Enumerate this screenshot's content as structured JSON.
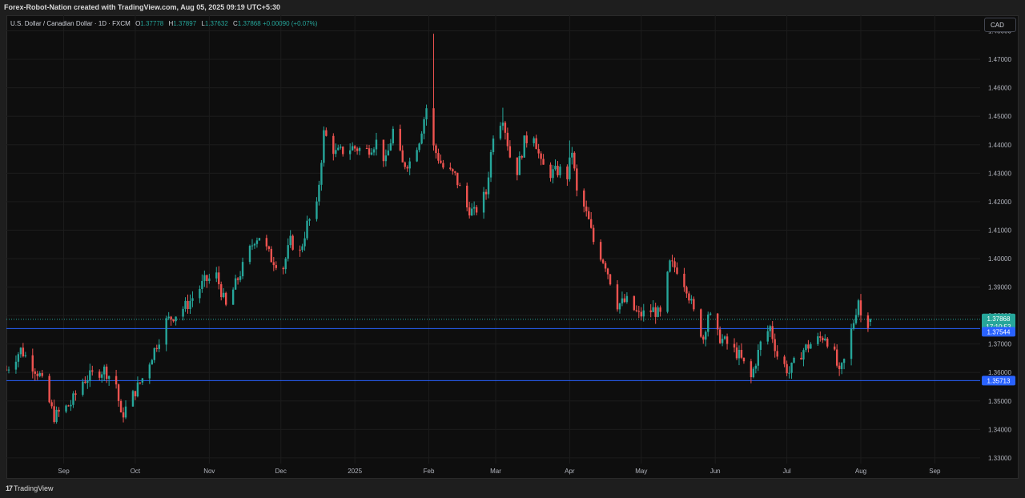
{
  "header": {
    "credit": "Forex-Robot-Nation created with TradingView.com, Aug 05, 2025 09:19 UTC+5:30"
  },
  "legend": {
    "symbol": "U.S. Dollar / Canadian Dollar · 1D · FXCM",
    "open_label": "O",
    "open": "1.37778",
    "high_label": "H",
    "high": "1.37897",
    "low_label": "L",
    "low": "1.37632",
    "close_label": "C",
    "close": "1.37868",
    "change": "+0.00090 (+0.07%)"
  },
  "currency_badge": "CAD",
  "footer": {
    "brand": "TradingView",
    "brand_mark": "17"
  },
  "colors": {
    "background": "#0e0e0e",
    "grid": "#1c1c1c",
    "up": "#26a69a",
    "down": "#ef5350",
    "level_line": "#2962ff",
    "axis_text": "#b2b5be"
  },
  "chart_data": {
    "type": "candlestick",
    "title": "U.S. Dollar / Canadian Dollar · 1D · FXCM",
    "x_range": [
      "2024-08-08",
      "2025-09-20"
    ],
    "ylim": [
      1.328,
      1.4855
    ],
    "grid": true,
    "y_ticks": [
      "1.48000",
      "1.47000",
      "1.46000",
      "1.45000",
      "1.44000",
      "1.43000",
      "1.42000",
      "1.41000",
      "1.40000",
      "1.39000",
      "1.38000",
      "1.37000",
      "1.36000",
      "1.35000",
      "1.34000",
      "1.33000"
    ],
    "x_ticks": [
      {
        "date": "2024-09-01",
        "label": "Sep"
      },
      {
        "date": "2024-10-01",
        "label": "Oct"
      },
      {
        "date": "2024-11-01",
        "label": "Nov"
      },
      {
        "date": "2024-12-01",
        "label": "Dec"
      },
      {
        "date": "2025-01-01",
        "label": "2025"
      },
      {
        "date": "2025-02-01",
        "label": "Feb"
      },
      {
        "date": "2025-03-01",
        "label": "Mar"
      },
      {
        "date": "2025-04-01",
        "label": "Apr"
      },
      {
        "date": "2025-05-01",
        "label": "May"
      },
      {
        "date": "2025-06-01",
        "label": "Jun"
      },
      {
        "date": "2025-07-01",
        "label": "Jul"
      },
      {
        "date": "2025-08-01",
        "label": "Aug"
      },
      {
        "date": "2025-09-01",
        "label": "Sep"
      }
    ],
    "price_labels": [
      {
        "value": 1.37868,
        "label": "1.37868",
        "countdown": "17:10:53",
        "kind": "last",
        "color": "#26a69a"
      },
      {
        "value": 1.37544,
        "label": "1.37544",
        "kind": "level",
        "color": "#2962ff"
      },
      {
        "value": 1.35713,
        "label": "1.35713",
        "kind": "level",
        "color": "#2962ff"
      }
    ],
    "horizontal_lines": [
      1.37544,
      1.35713
    ],
    "last_price": 1.37868,
    "anchors": [
      {
        "date": "2024-08-08",
        "close": 1.361
      },
      {
        "date": "2024-08-14",
        "close": 1.368
      },
      {
        "date": "2024-08-22",
        "close": 1.359
      },
      {
        "date": "2024-08-28",
        "close": 1.3445
      },
      {
        "date": "2024-09-04",
        "close": 1.349
      },
      {
        "date": "2024-09-09",
        "close": 1.357
      },
      {
        "date": "2024-09-13",
        "close": 1.3592
      },
      {
        "date": "2024-09-18",
        "close": 1.361
      },
      {
        "date": "2024-09-23",
        "close": 1.356
      },
      {
        "date": "2024-09-25",
        "close": 1.3442
      },
      {
        "date": "2024-09-30",
        "close": 1.352
      },
      {
        "date": "2024-10-04",
        "close": 1.358
      },
      {
        "date": "2024-10-08",
        "close": 1.366
      },
      {
        "date": "2024-10-14",
        "close": 1.378
      },
      {
        "date": "2024-10-18",
        "close": 1.3805
      },
      {
        "date": "2024-10-23",
        "close": 1.384
      },
      {
        "date": "2024-10-30",
        "close": 1.392
      },
      {
        "date": "2024-11-04",
        "close": 1.394
      },
      {
        "date": "2024-11-08",
        "close": 1.383
      },
      {
        "date": "2024-11-14",
        "close": 1.395
      },
      {
        "date": "2024-11-20",
        "close": 1.407
      },
      {
        "date": "2024-11-22",
        "close": 1.408
      },
      {
        "date": "2024-11-27",
        "close": 1.4
      },
      {
        "date": "2024-12-02",
        "close": 1.397
      },
      {
        "date": "2024-12-05",
        "close": 1.406
      },
      {
        "date": "2024-12-09",
        "close": 1.402
      },
      {
        "date": "2024-12-12",
        "close": 1.412
      },
      {
        "date": "2024-12-16",
        "close": 1.418
      },
      {
        "date": "2024-12-19",
        "close": 1.444
      },
      {
        "date": "2024-12-24",
        "close": 1.437
      },
      {
        "date": "2024-12-31",
        "close": 1.439
      },
      {
        "date": "2025-01-06",
        "close": 1.438
      },
      {
        "date": "2025-01-10",
        "close": 1.441
      },
      {
        "date": "2025-01-14",
        "close": 1.434
      },
      {
        "date": "2025-01-17",
        "close": 1.445
      },
      {
        "date": "2025-01-21",
        "close": 1.433
      },
      {
        "date": "2025-01-24",
        "close": 1.434
      },
      {
        "date": "2025-01-28",
        "close": 1.442
      },
      {
        "date": "2025-01-31",
        "close": 1.453
      },
      {
        "date": "2025-02-03",
        "close": 1.439
      },
      {
        "date": "2025-02-07",
        "close": 1.432
      },
      {
        "date": "2025-02-12",
        "close": 1.429
      },
      {
        "date": "2025-02-17",
        "close": 1.418
      },
      {
        "date": "2025-02-20",
        "close": 1.416
      },
      {
        "date": "2025-02-25",
        "close": 1.423
      },
      {
        "date": "2025-02-28",
        "close": 1.444
      },
      {
        "date": "2025-03-04",
        "close": 1.45
      },
      {
        "date": "2025-03-07",
        "close": 1.436
      },
      {
        "date": "2025-03-10",
        "close": 1.431
      },
      {
        "date": "2025-03-13",
        "close": 1.441
      },
      {
        "date": "2025-03-17",
        "close": 1.444
      },
      {
        "date": "2025-03-20",
        "close": 1.433
      },
      {
        "date": "2025-03-24",
        "close": 1.43
      },
      {
        "date": "2025-03-28",
        "close": 1.431
      },
      {
        "date": "2025-03-31",
        "close": 1.429
      },
      {
        "date": "2025-04-02",
        "close": 1.438
      },
      {
        "date": "2025-04-04",
        "close": 1.423
      },
      {
        "date": "2025-04-07",
        "close": 1.418
      },
      {
        "date": "2025-04-09",
        "close": 1.413
      },
      {
        "date": "2025-04-11",
        "close": 1.406
      },
      {
        "date": "2025-04-16",
        "close": 1.398
      },
      {
        "date": "2025-04-21",
        "close": 1.384
      },
      {
        "date": "2025-04-25",
        "close": 1.385
      },
      {
        "date": "2025-04-30",
        "close": 1.38
      },
      {
        "date": "2025-05-06",
        "close": 1.382
      },
      {
        "date": "2025-05-09",
        "close": 1.38
      },
      {
        "date": "2025-05-13",
        "close": 1.398
      },
      {
        "date": "2025-05-16",
        "close": 1.3965
      },
      {
        "date": "2025-05-20",
        "close": 1.39
      },
      {
        "date": "2025-05-23",
        "close": 1.381
      },
      {
        "date": "2025-05-27",
        "close": 1.372
      },
      {
        "date": "2025-05-29",
        "close": 1.381
      },
      {
        "date": "2025-06-02",
        "close": 1.373
      },
      {
        "date": "2025-06-06",
        "close": 1.37
      },
      {
        "date": "2025-06-11",
        "close": 1.366
      },
      {
        "date": "2025-06-16",
        "close": 1.358
      },
      {
        "date": "2025-06-20",
        "close": 1.37
      },
      {
        "date": "2025-06-24",
        "close": 1.376
      },
      {
        "date": "2025-06-27",
        "close": 1.366
      },
      {
        "date": "2025-07-02",
        "close": 1.36
      },
      {
        "date": "2025-07-04",
        "close": 1.363
      },
      {
        "date": "2025-07-08",
        "close": 1.368
      },
      {
        "date": "2025-07-11",
        "close": 1.37
      },
      {
        "date": "2025-07-15",
        "close": 1.372
      },
      {
        "date": "2025-07-17",
        "close": 1.373
      },
      {
        "date": "2025-07-21",
        "close": 1.366
      },
      {
        "date": "2025-07-23",
        "close": 1.359
      },
      {
        "date": "2025-07-25",
        "close": 1.364
      },
      {
        "date": "2025-07-29",
        "close": 1.378
      },
      {
        "date": "2025-07-31",
        "close": 1.386
      },
      {
        "date": "2025-08-01",
        "close": 1.38
      },
      {
        "date": "2025-08-04",
        "close": 1.3778
      },
      {
        "date": "2025-08-05",
        "close": 1.37868
      }
    ],
    "spikes": [
      {
        "date": "2025-02-03",
        "high": 1.479
      },
      {
        "date": "2025-03-04",
        "high": 1.453
      },
      {
        "date": "2025-04-01",
        "high": 1.4415
      }
    ]
  }
}
